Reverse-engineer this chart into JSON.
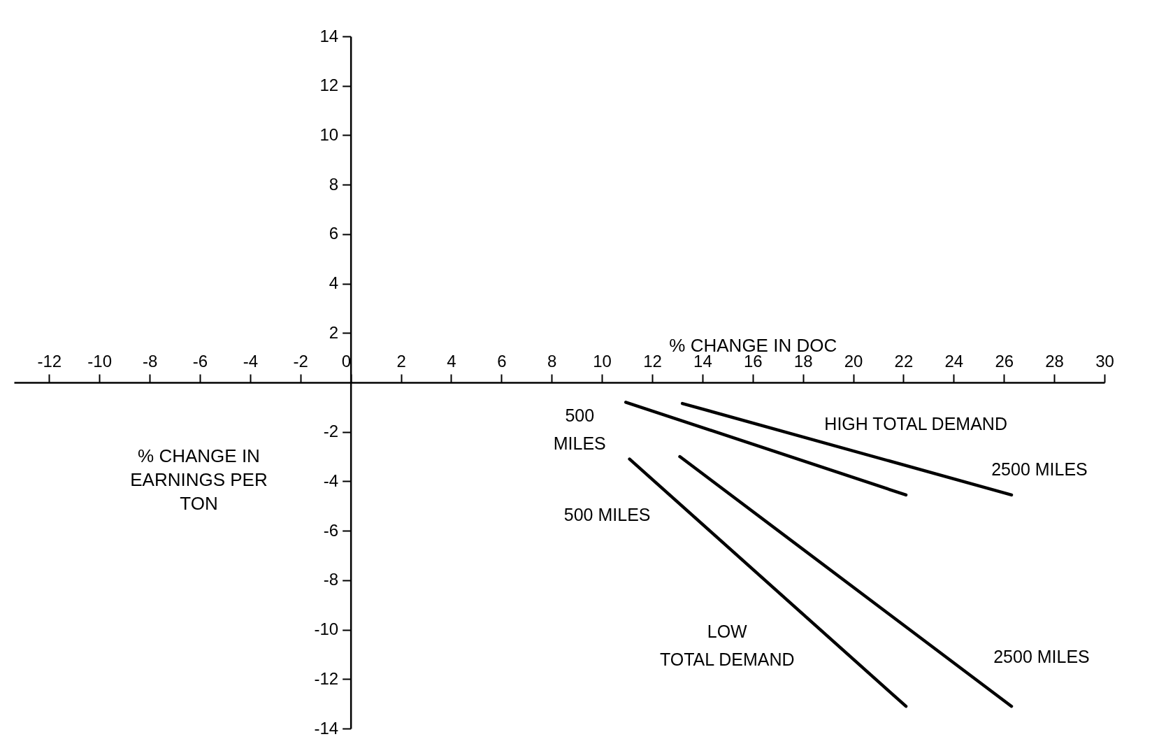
{
  "chart_data": {
    "type": "line",
    "xlabel": "% CHANGE IN DOC",
    "ylabel": "% CHANGE IN EARNINGS PER TON",
    "xlim": [
      -13.4,
      30
    ],
    "ylim": [
      -14,
      14
    ],
    "xticks": [
      -12,
      -10,
      -8,
      -6,
      -4,
      -2,
      0,
      2,
      4,
      6,
      8,
      10,
      12,
      14,
      16,
      18,
      20,
      22,
      24,
      26,
      28,
      30
    ],
    "yticks": [
      -14,
      -12,
      -10,
      -8,
      -6,
      -4,
      -2,
      2,
      4,
      6,
      8,
      10,
      12,
      14
    ],
    "line_style": "solid",
    "series": [
      {
        "name": "500 MILES",
        "color": "#000000",
        "x": [
          10.95,
          22.1
        ],
        "values": [
          -0.8,
          -4.55
        ]
      },
      {
        "name": "2500 MILES",
        "color": "#000000",
        "x": [
          13.2,
          26.3
        ],
        "values": [
          -0.85,
          -4.55
        ]
      },
      {
        "name": "500 MILES",
        "color": "#000000",
        "x": [
          11.1,
          22.1
        ],
        "values": [
          -3.1,
          -13.1
        ]
      },
      {
        "name": "2500 MILES",
        "color": "#000000",
        "x": [
          13.1,
          26.3
        ],
        "values": [
          -3.0,
          -13.1
        ]
      }
    ],
    "annotations": [
      "HIGH TOTAL DEMAND",
      "LOW TOTAL DEMAND"
    ]
  }
}
